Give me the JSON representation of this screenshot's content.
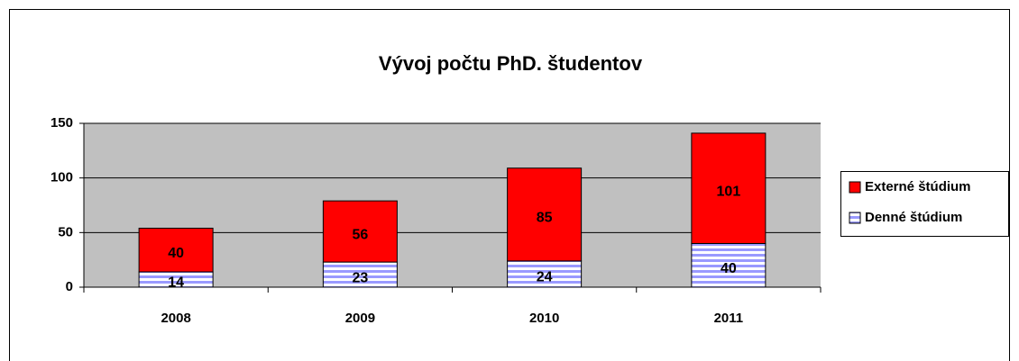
{
  "chart_data": {
    "type": "stacked_bar",
    "title": "Vývoj počtu PhD. študentov",
    "categories": [
      "2008",
      "2009",
      "2010",
      "2011"
    ],
    "series": [
      {
        "name": "Denné štúdium",
        "color": "#9999ff",
        "values": [
          14,
          23,
          24,
          40
        ]
      },
      {
        "name": "Externé štúdium",
        "color": "#ff0000",
        "values": [
          40,
          56,
          85,
          101
        ]
      }
    ],
    "ylim": [
      0,
      150
    ],
    "yticks": [
      0,
      50,
      100,
      150
    ],
    "grid": true,
    "legend": "right"
  }
}
